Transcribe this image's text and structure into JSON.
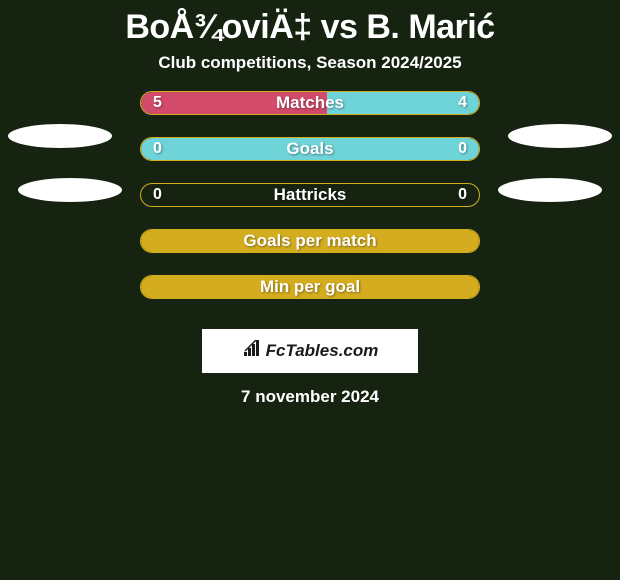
{
  "title": "BoÅ¾oviÄ‡ vs B. Marić",
  "subtitle": "Club competitions, Season 2024/2025",
  "date": "7 november 2024",
  "logo_text": "FcTables.com",
  "colors": {
    "background": "#162311",
    "border": "#d4ad1f",
    "left_fill": "#d34b6a",
    "right_fill": "#6fd4d8",
    "empty_fill": "#d4ad1f",
    "text": "#ffffff",
    "ellipse": "#ffffff"
  },
  "stat_rows": [
    {
      "label": "Matches",
      "left_value": "5",
      "right_value": "4",
      "left_pct": 55,
      "right_pct": 45,
      "has_values": true,
      "fill_type": "split",
      "left_color": "#d34b6a",
      "right_color": "#6fd4d8"
    },
    {
      "label": "Goals",
      "left_value": "0",
      "right_value": "0",
      "left_pct": 0,
      "right_pct": 0,
      "has_values": true,
      "fill_type": "full",
      "fill_color": "#6fd4d8"
    },
    {
      "label": "Hattricks",
      "left_value": "0",
      "right_value": "0",
      "left_pct": 0,
      "right_pct": 0,
      "has_values": true,
      "fill_type": "none"
    },
    {
      "label": "Goals per match",
      "has_values": false,
      "fill_type": "empty",
      "fill_color": "#d4ad1f"
    },
    {
      "label": "Min per goal",
      "has_values": false,
      "fill_type": "empty",
      "fill_color": "#d4ad1f"
    }
  ]
}
